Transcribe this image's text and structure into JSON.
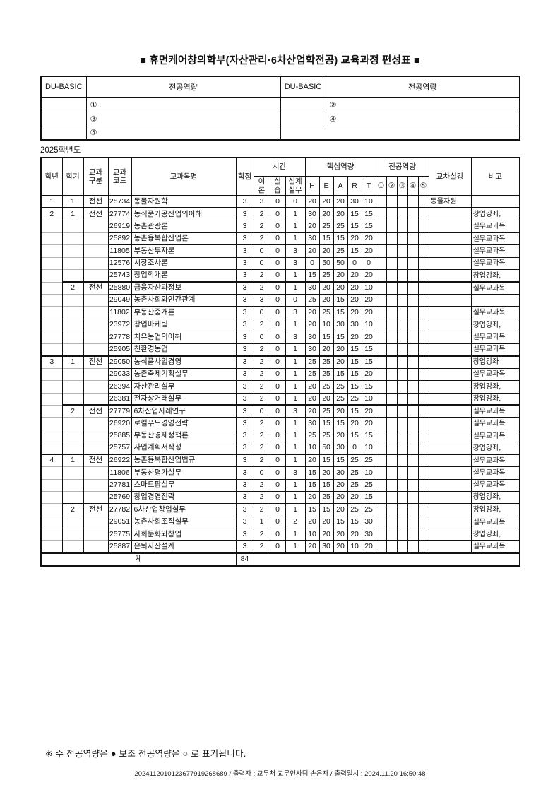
{
  "page": {
    "title": "■ 휴먼케어창의학부(자산관리·6차산업학전공) 교육과정 편성표 ■",
    "year_label": "2025학년도",
    "footnote": "※ 주 전공역량은 ● 보조 전공역량은 ○ 로 표기됩니다.",
    "print_info": "2024112010123677919268689 / 출력자 : 교무처 교무인사팀 손은자 / 출력일시 : 2024.11.20 16:50:48"
  },
  "competency_table": {
    "headers": [
      "DU-BASIC",
      "전공역량",
      "DU-BASIC",
      "전공역량"
    ],
    "rows": [
      {
        "left_label": "",
        "left_value": "① .",
        "right_label": "",
        "right_value": "②"
      },
      {
        "left_label": "",
        "left_value": "③",
        "right_label": "",
        "right_value": "④"
      },
      {
        "left_label": "",
        "left_value": "⑤"
      }
    ]
  },
  "curriculum_table": {
    "headers": {
      "grade": "학년",
      "semester": "학기",
      "category": "교과\n구분",
      "code": "교과\n코드",
      "course": "교과목명",
      "credit": "학점",
      "time_group": "시간",
      "time_cols": [
        "이\n론",
        "실\n습",
        "설계\n실무"
      ],
      "core_group": "핵심역량",
      "core_cols": [
        "H",
        "E",
        "A",
        "R",
        "T"
      ],
      "major_group": "전공역량",
      "major_cols": [
        "①",
        "②",
        "③",
        "④",
        "⑤"
      ],
      "cross": "교차실강",
      "note": "비고"
    },
    "rows": [
      {
        "grade": "1",
        "sem": "1",
        "cat": "전선",
        "code": "25734",
        "name": "동물자원학",
        "credit": "3",
        "theory": "3",
        "prac": "0",
        "design": "0",
        "h": "20",
        "e": "20",
        "a": "20",
        "r": "30",
        "t": "10",
        "cross": "동물자원",
        "note": "",
        "ys": true,
        "ss": true
      },
      {
        "grade": "2",
        "sem": "1",
        "cat": "전선",
        "code": "27774",
        "name": "농식품가공산업의이해",
        "credit": "3",
        "theory": "2",
        "prac": "0",
        "design": "1",
        "h": "30",
        "e": "20",
        "a": "20",
        "r": "15",
        "t": "15",
        "cross": "",
        "note": "창업강좌,",
        "ys": true,
        "ss": true
      },
      {
        "grade": "",
        "sem": "",
        "cat": "",
        "code": "26919",
        "name": "농촌관광론",
        "credit": "3",
        "theory": "2",
        "prac": "0",
        "design": "1",
        "h": "20",
        "e": "25",
        "a": "25",
        "r": "15",
        "t": "15",
        "cross": "",
        "note": "실무교과목",
        "ys": false,
        "ss": false
      },
      {
        "grade": "",
        "sem": "",
        "cat": "",
        "code": "25892",
        "name": "농촌융복합산업론",
        "credit": "3",
        "theory": "2",
        "prac": "0",
        "design": "1",
        "h": "30",
        "e": "15",
        "a": "15",
        "r": "20",
        "t": "20",
        "cross": "",
        "note": "실무교과목",
        "ys": false,
        "ss": false
      },
      {
        "grade": "",
        "sem": "",
        "cat": "",
        "code": "11805",
        "name": "부동산투자론",
        "credit": "3",
        "theory": "0",
        "prac": "0",
        "design": "3",
        "h": "20",
        "e": "20",
        "a": "25",
        "r": "15",
        "t": "20",
        "cross": "",
        "note": "실무교과목",
        "ys": false,
        "ss": false
      },
      {
        "grade": "",
        "sem": "",
        "cat": "",
        "code": "12576",
        "name": "시장조사론",
        "credit": "3",
        "theory": "0",
        "prac": "0",
        "design": "3",
        "h": "0",
        "e": "50",
        "a": "50",
        "r": "0",
        "t": "0",
        "cross": "",
        "note": "실무교과목",
        "ys": false,
        "ss": false
      },
      {
        "grade": "",
        "sem": "",
        "cat": "",
        "code": "25743",
        "name": "창업학개론",
        "credit": "3",
        "theory": "2",
        "prac": "0",
        "design": "1",
        "h": "15",
        "e": "25",
        "a": "20",
        "r": "20",
        "t": "20",
        "cross": "",
        "note": "창업강좌,",
        "ys": false,
        "ss": false
      },
      {
        "grade": "",
        "sem": "2",
        "cat": "전선",
        "code": "25880",
        "name": "금융자산과정보",
        "credit": "3",
        "theory": "2",
        "prac": "0",
        "design": "1",
        "h": "30",
        "e": "20",
        "a": "20",
        "r": "20",
        "t": "10",
        "cross": "",
        "note": "실무교과목",
        "ys": false,
        "ss": true
      },
      {
        "grade": "",
        "sem": "",
        "cat": "",
        "code": "29049",
        "name": "농촌사회와인간관계",
        "credit": "3",
        "theory": "3",
        "prac": "0",
        "design": "0",
        "h": "25",
        "e": "20",
        "a": "15",
        "r": "20",
        "t": "20",
        "cross": "",
        "note": "",
        "ys": false,
        "ss": false
      },
      {
        "grade": "",
        "sem": "",
        "cat": "",
        "code": "11802",
        "name": "부동산중개론",
        "credit": "3",
        "theory": "0",
        "prac": "0",
        "design": "3",
        "h": "20",
        "e": "25",
        "a": "15",
        "r": "20",
        "t": "20",
        "cross": "",
        "note": "실무교과목",
        "ys": false,
        "ss": false
      },
      {
        "grade": "",
        "sem": "",
        "cat": "",
        "code": "23972",
        "name": "창업마케팅",
        "credit": "3",
        "theory": "2",
        "prac": "0",
        "design": "1",
        "h": "20",
        "e": "10",
        "a": "30",
        "r": "30",
        "t": "10",
        "cross": "",
        "note": "창업강좌,",
        "ys": false,
        "ss": false
      },
      {
        "grade": "",
        "sem": "",
        "cat": "",
        "code": "27778",
        "name": "치유농업의이해",
        "credit": "3",
        "theory": "0",
        "prac": "0",
        "design": "3",
        "h": "30",
        "e": "15",
        "a": "15",
        "r": "20",
        "t": "20",
        "cross": "",
        "note": "실무교과목",
        "ys": false,
        "ss": false
      },
      {
        "grade": "",
        "sem": "",
        "cat": "",
        "code": "25905",
        "name": "친환경농업",
        "credit": "3",
        "theory": "2",
        "prac": "0",
        "design": "1",
        "h": "30",
        "e": "20",
        "a": "20",
        "r": "15",
        "t": "15",
        "cross": "",
        "note": "실무교과목",
        "ys": false,
        "ss": false
      },
      {
        "grade": "3",
        "sem": "1",
        "cat": "전선",
        "code": "29050",
        "name": "농식품사업경영",
        "credit": "3",
        "theory": "2",
        "prac": "0",
        "design": "1",
        "h": "25",
        "e": "25",
        "a": "20",
        "r": "15",
        "t": "15",
        "cross": "",
        "note": "창업강좌",
        "ys": true,
        "ss": true
      },
      {
        "grade": "",
        "sem": "",
        "cat": "",
        "code": "29033",
        "name": "농촌축제기획실무",
        "credit": "3",
        "theory": "2",
        "prac": "0",
        "design": "1",
        "h": "25",
        "e": "25",
        "a": "15",
        "r": "15",
        "t": "20",
        "cross": "",
        "note": "실무교과목",
        "ys": false,
        "ss": false
      },
      {
        "grade": "",
        "sem": "",
        "cat": "",
        "code": "26394",
        "name": "자산관리실무",
        "credit": "3",
        "theory": "2",
        "prac": "0",
        "design": "1",
        "h": "20",
        "e": "25",
        "a": "25",
        "r": "15",
        "t": "15",
        "cross": "",
        "note": "창업강좌,",
        "ys": false,
        "ss": false
      },
      {
        "grade": "",
        "sem": "",
        "cat": "",
        "code": "26381",
        "name": "전자상거래실무",
        "credit": "3",
        "theory": "2",
        "prac": "0",
        "design": "1",
        "h": "20",
        "e": "20",
        "a": "25",
        "r": "25",
        "t": "10",
        "cross": "",
        "note": "창업강좌,",
        "ys": false,
        "ss": false
      },
      {
        "grade": "",
        "sem": "2",
        "cat": "전선",
        "code": "27779",
        "name": "6차산업사례연구",
        "credit": "3",
        "theory": "0",
        "prac": "0",
        "design": "3",
        "h": "20",
        "e": "25",
        "a": "20",
        "r": "15",
        "t": "20",
        "cross": "",
        "note": "실무교과목",
        "ys": false,
        "ss": true
      },
      {
        "grade": "",
        "sem": "",
        "cat": "",
        "code": "26920",
        "name": "로컬푸드경영전략",
        "credit": "3",
        "theory": "2",
        "prac": "0",
        "design": "1",
        "h": "30",
        "e": "15",
        "a": "15",
        "r": "20",
        "t": "20",
        "cross": "",
        "note": "실무교과목",
        "ys": false,
        "ss": false
      },
      {
        "grade": "",
        "sem": "",
        "cat": "",
        "code": "25885",
        "name": "부동산경제정책론",
        "credit": "3",
        "theory": "2",
        "prac": "0",
        "design": "1",
        "h": "25",
        "e": "25",
        "a": "20",
        "r": "15",
        "t": "15",
        "cross": "",
        "note": "실무교과목",
        "ys": false,
        "ss": false
      },
      {
        "grade": "",
        "sem": "",
        "cat": "",
        "code": "25757",
        "name": "사업계획서작성",
        "credit": "3",
        "theory": "2",
        "prac": "0",
        "design": "1",
        "h": "10",
        "e": "50",
        "a": "30",
        "r": "0",
        "t": "10",
        "cross": "",
        "note": "창업강좌,",
        "ys": false,
        "ss": false
      },
      {
        "grade": "4",
        "sem": "1",
        "cat": "전선",
        "code": "26922",
        "name": "농촌융복합산업법규",
        "credit": "3",
        "theory": "2",
        "prac": "0",
        "design": "1",
        "h": "20",
        "e": "15",
        "a": "15",
        "r": "25",
        "t": "25",
        "cross": "",
        "note": "실무교과목",
        "ys": true,
        "ss": true
      },
      {
        "grade": "",
        "sem": "",
        "cat": "",
        "code": "11806",
        "name": "부동산평가실무",
        "credit": "3",
        "theory": "0",
        "prac": "0",
        "design": "3",
        "h": "15",
        "e": "20",
        "a": "30",
        "r": "25",
        "t": "10",
        "cross": "",
        "note": "실무교과목",
        "ys": false,
        "ss": false
      },
      {
        "grade": "",
        "sem": "",
        "cat": "",
        "code": "27781",
        "name": "스마트팜실무",
        "credit": "3",
        "theory": "2",
        "prac": "0",
        "design": "1",
        "h": "15",
        "e": "15",
        "a": "20",
        "r": "25",
        "t": "25",
        "cross": "",
        "note": "실무교과목",
        "ys": false,
        "ss": false
      },
      {
        "grade": "",
        "sem": "",
        "cat": "",
        "code": "25769",
        "name": "창업경영전략",
        "credit": "3",
        "theory": "2",
        "prac": "0",
        "design": "1",
        "h": "20",
        "e": "25",
        "a": "20",
        "r": "20",
        "t": "15",
        "cross": "",
        "note": "창업강좌,",
        "ys": false,
        "ss": false
      },
      {
        "grade": "",
        "sem": "2",
        "cat": "전선",
        "code": "27782",
        "name": "6차산업창업실무",
        "credit": "3",
        "theory": "2",
        "prac": "0",
        "design": "1",
        "h": "15",
        "e": "15",
        "a": "20",
        "r": "25",
        "t": "25",
        "cross": "",
        "note": "창업강좌,",
        "ys": false,
        "ss": true
      },
      {
        "grade": "",
        "sem": "",
        "cat": "",
        "code": "29051",
        "name": "농촌사회조직실무",
        "credit": "3",
        "theory": "1",
        "prac": "0",
        "design": "2",
        "h": "20",
        "e": "20",
        "a": "15",
        "r": "15",
        "t": "30",
        "cross": "",
        "note": "실무교과목",
        "ys": false,
        "ss": false
      },
      {
        "grade": "",
        "sem": "",
        "cat": "",
        "code": "25775",
        "name": "사회문화와창업",
        "credit": "3",
        "theory": "2",
        "prac": "0",
        "design": "1",
        "h": "10",
        "e": "20",
        "a": "20",
        "r": "20",
        "t": "30",
        "cross": "",
        "note": "창업강좌,",
        "ys": false,
        "ss": false
      },
      {
        "grade": "",
        "sem": "",
        "cat": "",
        "code": "25887",
        "name": "은퇴자산설계",
        "credit": "3",
        "theory": "2",
        "prac": "0",
        "design": "1",
        "h": "20",
        "e": "30",
        "a": "20",
        "r": "10",
        "t": "20",
        "cross": "",
        "note": "실무교과목",
        "ys": false,
        "ss": false
      }
    ],
    "total": {
      "label": "계",
      "credit": "84"
    }
  }
}
